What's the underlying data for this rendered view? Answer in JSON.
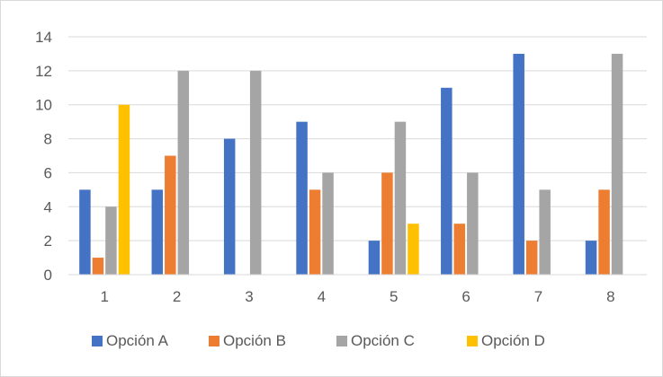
{
  "chart_data": {
    "type": "bar",
    "categories": [
      "1",
      "2",
      "3",
      "4",
      "5",
      "6",
      "7",
      "8"
    ],
    "series": [
      {
        "name": "Opción A",
        "color": "#4472C4",
        "values": [
          5,
          5,
          8,
          9,
          2,
          11,
          13,
          2
        ]
      },
      {
        "name": "Opción B",
        "color": "#ED7D31",
        "values": [
          1,
          7,
          0,
          5,
          6,
          3,
          2,
          5
        ]
      },
      {
        "name": "Opción C",
        "color": "#A5A5A5",
        "values": [
          4,
          12,
          12,
          6,
          9,
          6,
          5,
          13
        ]
      },
      {
        "name": "Opción D",
        "color": "#FFC000",
        "values": [
          10,
          0,
          0,
          0,
          3,
          0,
          0,
          0
        ]
      }
    ],
    "yticks": [
      "0",
      "2",
      "4",
      "6",
      "8",
      "10",
      "12",
      "14"
    ],
    "ylim": [
      0,
      14
    ],
    "grid": true,
    "legend_position": "bottom"
  }
}
